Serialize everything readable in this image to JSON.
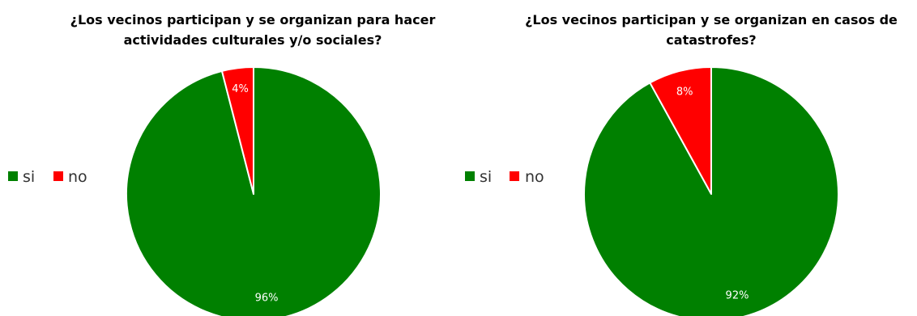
{
  "chart_data": [
    {
      "type": "pie",
      "title_lines": [
        "¿Los vecinos participan y se organizan para hacer",
        "actividades culturales y/o sociales?"
      ],
      "categories": [
        "si",
        "no"
      ],
      "values": [
        96,
        4
      ],
      "labels": [
        "96%",
        "4%"
      ],
      "colors": [
        "#008000",
        "#ff0000"
      ],
      "legend_position": "left",
      "legend": [
        "si",
        "no"
      ]
    },
    {
      "type": "pie",
      "title_lines": [
        "¿Los vecinos participan y se organizan en casos de",
        "catastrofes?"
      ],
      "categories": [
        "si",
        "no"
      ],
      "values": [
        92,
        8
      ],
      "labels": [
        "92%",
        "8%"
      ],
      "colors": [
        "#008000",
        "#ff0000"
      ],
      "legend_position": "left",
      "legend": [
        "si",
        "no"
      ]
    }
  ]
}
